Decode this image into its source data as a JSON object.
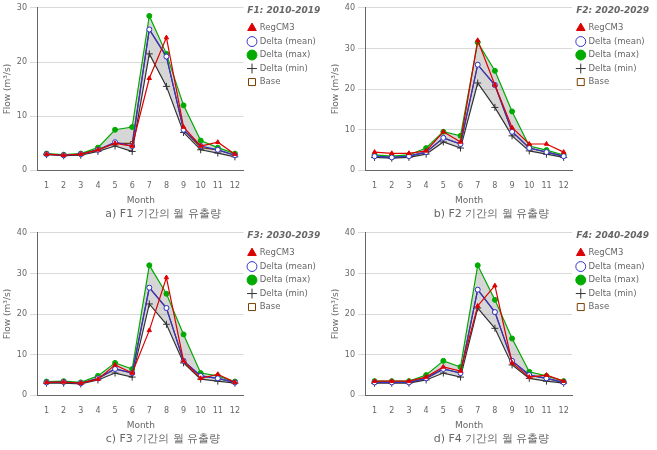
{
  "chart_data": [
    {
      "type": "line",
      "title": "a) F1 기간의 월 유출량",
      "subtitle": "F1: 2010-2019",
      "xlabel": "Month",
      "ylabel": "Flow (m³/s)",
      "x": [
        1,
        2,
        3,
        4,
        5,
        6,
        7,
        8,
        9,
        10,
        11,
        12
      ],
      "xlim": [
        0.5,
        12.5
      ],
      "xticks": [
        1,
        2,
        3,
        4,
        5,
        6,
        7,
        8,
        9,
        10,
        11,
        12
      ],
      "ylim": [
        0,
        30
      ],
      "yticks": [
        0,
        10,
        20,
        30
      ],
      "grid": "y",
      "legend": "upper right",
      "series": [
        {
          "name": "RegCM3",
          "color": "#dd0000",
          "marker": "triangle",
          "values": [
            3.0,
            2.8,
            3.0,
            3.8,
            5.0,
            4.5,
            17.0,
            24.5,
            8.0,
            4.5,
            5.2,
            3.0
          ]
        },
        {
          "name": "Delta (mean)",
          "color": "#3333cc",
          "marker": "circle-open",
          "values": [
            3.0,
            2.8,
            3.0,
            3.8,
            5.2,
            4.5,
            26.0,
            21.0,
            7.5,
            4.5,
            3.8,
            2.8
          ]
        },
        {
          "name": "Delta (max)",
          "color": "#00aa00",
          "marker": "circle",
          "values": [
            3.1,
            2.9,
            3.1,
            4.2,
            7.5,
            8.0,
            28.5,
            21.5,
            12.0,
            5.5,
            4.2,
            3.1
          ]
        },
        {
          "name": "Delta (min)",
          "color": "#333333",
          "marker": "plus",
          "values": [
            2.9,
            2.7,
            2.8,
            3.5,
            4.5,
            3.5,
            21.5,
            15.5,
            7.0,
            3.8,
            3.2,
            2.5
          ]
        },
        {
          "name": "Base",
          "color": "#7B3F00",
          "marker": "square-open",
          "values": [
            3.0,
            2.8,
            3.0,
            3.8,
            5.0,
            5.0,
            26.0,
            21.0,
            7.5,
            4.2,
            3.8,
            2.8
          ]
        }
      ]
    },
    {
      "type": "line",
      "title": "b) F2 기간의 월 유출량",
      "subtitle": "F2: 2020-2029",
      "xlabel": "Month",
      "ylabel": "Flow (m³/s)",
      "x": [
        1,
        2,
        3,
        4,
        5,
        6,
        7,
        8,
        9,
        10,
        11,
        12
      ],
      "xlim": [
        0.5,
        12.5
      ],
      "xticks": [
        1,
        2,
        3,
        4,
        5,
        6,
        7,
        8,
        9,
        10,
        11,
        12
      ],
      "ylim": [
        0,
        40
      ],
      "yticks": [
        0,
        10,
        20,
        30,
        40
      ],
      "grid": "y",
      "legend": "upper right",
      "series": [
        {
          "name": "RegCM3",
          "color": "#dd0000",
          "marker": "triangle",
          "values": [
            4.5,
            4.2,
            4.2,
            4.8,
            9.5,
            7.0,
            32.0,
            21.0,
            10.5,
            6.5,
            6.5,
            4.5
          ]
        },
        {
          "name": "Delta (mean)",
          "color": "#3333cc",
          "marker": "circle-open",
          "values": [
            3.5,
            3.2,
            3.5,
            4.5,
            8.0,
            6.5,
            26.0,
            21.0,
            9.5,
            5.5,
            4.5,
            3.5
          ]
        },
        {
          "name": "Delta (max)",
          "color": "#00aa00",
          "marker": "circle",
          "values": [
            3.8,
            3.5,
            3.8,
            5.5,
            9.5,
            8.5,
            31.5,
            24.5,
            14.5,
            6.0,
            5.0,
            3.8
          ]
        },
        {
          "name": "Delta (min)",
          "color": "#333333",
          "marker": "plus",
          "values": [
            3.2,
            3.0,
            3.2,
            4.0,
            7.0,
            5.5,
            21.5,
            15.5,
            8.5,
            4.8,
            4.0,
            3.2
          ]
        },
        {
          "name": "Base",
          "color": "#7B3F00",
          "marker": "square-open",
          "values": [
            3.5,
            3.2,
            3.5,
            4.5,
            8.0,
            6.5,
            26.0,
            21.0,
            9.5,
            5.5,
            4.5,
            3.5
          ]
        }
      ]
    },
    {
      "type": "line",
      "title": "c) F3 기간의 월 유출량",
      "subtitle": "F3: 2030-2039",
      "xlabel": "Month",
      "ylabel": "Flow (m³/s)",
      "x": [
        1,
        2,
        3,
        4,
        5,
        6,
        7,
        8,
        9,
        10,
        11,
        12
      ],
      "xlim": [
        0.5,
        12.5
      ],
      "xticks": [
        1,
        2,
        3,
        4,
        5,
        6,
        7,
        8,
        9,
        10,
        11,
        12
      ],
      "ylim": [
        0,
        40
      ],
      "yticks": [
        0,
        10,
        20,
        30,
        40
      ],
      "grid": "y",
      "legend": "upper right",
      "series": [
        {
          "name": "RegCM3",
          "color": "#dd0000",
          "marker": "triangle",
          "values": [
            3.2,
            3.3,
            3.0,
            4.0,
            7.5,
            5.5,
            16.0,
            29.0,
            8.5,
            4.2,
            5.2,
            3.2
          ]
        },
        {
          "name": "Delta (mean)",
          "color": "#3333cc",
          "marker": "circle-open",
          "values": [
            3.2,
            3.3,
            3.0,
            4.2,
            6.5,
            5.5,
            26.5,
            21.5,
            8.5,
            4.8,
            4.2,
            3.2
          ]
        },
        {
          "name": "Delta (max)",
          "color": "#00aa00",
          "marker": "circle",
          "values": [
            3.4,
            3.5,
            3.2,
            4.8,
            8.0,
            6.5,
            32.0,
            25.0,
            15.0,
            5.5,
            4.8,
            3.4
          ]
        },
        {
          "name": "Delta (min)",
          "color": "#333333",
          "marker": "plus",
          "values": [
            3.0,
            3.0,
            2.8,
            3.8,
            5.5,
            4.5,
            22.5,
            17.5,
            8.0,
            4.0,
            3.5,
            3.0
          ]
        },
        {
          "name": "Base",
          "color": "#7B3F00",
          "marker": "square-open",
          "values": [
            3.2,
            3.3,
            3.0,
            4.2,
            6.5,
            5.5,
            26.5,
            21.5,
            8.5,
            4.8,
            4.2,
            3.2
          ]
        }
      ]
    },
    {
      "type": "line",
      "title": "d) F4 기간의 월 유출량",
      "subtitle": "F4: 2040-2049",
      "xlabel": "Month",
      "ylabel": "Flow (m³/s)",
      "x": [
        1,
        2,
        3,
        4,
        5,
        6,
        7,
        8,
        9,
        10,
        11,
        12
      ],
      "xlim": [
        0.5,
        12.5
      ],
      "xticks": [
        1,
        2,
        3,
        4,
        5,
        6,
        7,
        8,
        9,
        10,
        11,
        12
      ],
      "ylim": [
        0,
        40
      ],
      "yticks": [
        0,
        10,
        20,
        30,
        40
      ],
      "grid": "y",
      "legend": "upper right",
      "series": [
        {
          "name": "RegCM3",
          "color": "#dd0000",
          "marker": "triangle",
          "values": [
            3.5,
            3.5,
            3.5,
            4.5,
            7.0,
            6.0,
            22.0,
            27.0,
            8.0,
            4.5,
            5.0,
            3.5
          ]
        },
        {
          "name": "Delta (mean)",
          "color": "#3333cc",
          "marker": "circle-open",
          "values": [
            3.2,
            3.2,
            3.2,
            4.2,
            6.5,
            5.5,
            26.0,
            20.5,
            8.5,
            5.0,
            4.2,
            3.2
          ]
        },
        {
          "name": "Delta (max)",
          "color": "#00aa00",
          "marker": "circle",
          "values": [
            3.5,
            3.5,
            3.5,
            5.0,
            8.5,
            7.0,
            32.0,
            23.5,
            14.0,
            5.8,
            4.8,
            3.5
          ]
        },
        {
          "name": "Delta (min)",
          "color": "#333333",
          "marker": "plus",
          "values": [
            3.0,
            3.0,
            3.0,
            3.8,
            5.5,
            4.5,
            21.5,
            16.5,
            7.5,
            4.2,
            3.5,
            3.0
          ]
        },
        {
          "name": "Base",
          "color": "#7B3F00",
          "marker": "square-open",
          "values": [
            3.2,
            3.2,
            3.2,
            4.2,
            6.5,
            5.5,
            26.0,
            20.5,
            8.5,
            5.0,
            4.2,
            3.2
          ]
        }
      ]
    }
  ]
}
